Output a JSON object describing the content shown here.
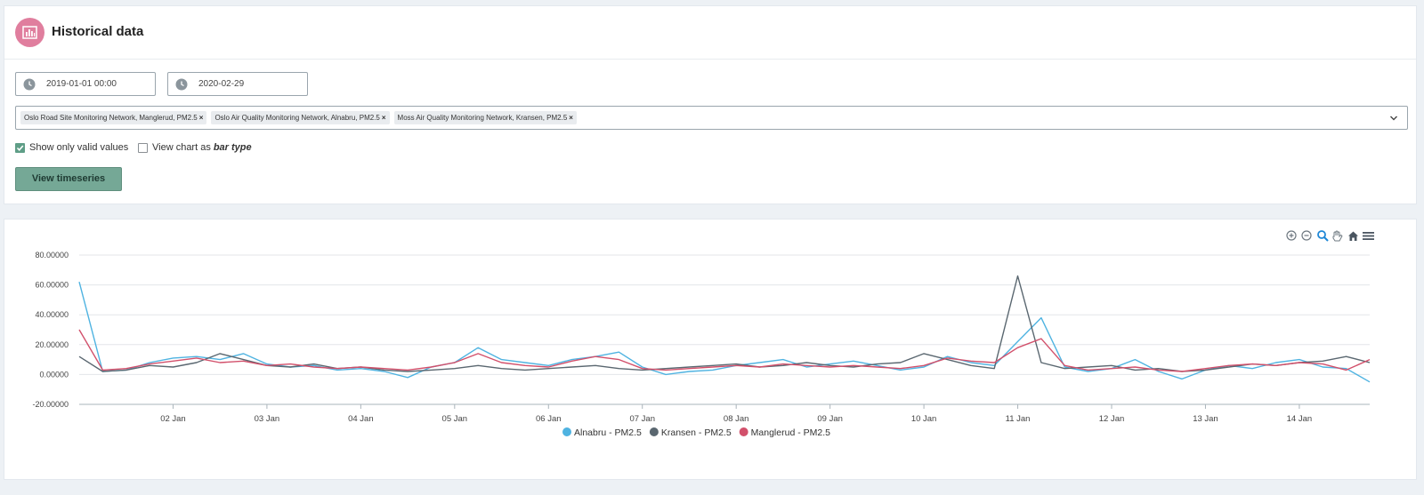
{
  "header": {
    "title": "Historical data"
  },
  "filters": {
    "start_date": "2019-01-01 00:00",
    "end_date": "2020-02-29",
    "stations": [
      "Oslo Road Site Monitoring Network, Manglerud, PM2.5",
      "Oslo Air Quality Monitoring Network, Alnabru, PM2.5",
      "Moss Air Quality Monitoring Network, Kransen, PM2.5"
    ],
    "remove_symbol": "×",
    "show_only_valid_label": "Show only valid values",
    "show_only_valid_checked": true,
    "view_chart_as_label": "View chart as",
    "bar_type_label": "bar type",
    "bar_type_checked": false,
    "view_button": "View timeseries"
  },
  "toolbar": {
    "icons": [
      "zoom-in-icon",
      "zoom-out-icon",
      "zoom-select-icon",
      "pan-icon",
      "home-icon",
      "menu-icon"
    ]
  },
  "colors": {
    "alnabru": "#4fb3e1",
    "kransen": "#5a6770",
    "manglerud": "#d2506b",
    "accent": "#75a896",
    "header_icon": "#e07e9e"
  },
  "chart_data": {
    "type": "line",
    "x_tick_labels": [
      "02 Jan",
      "03 Jan",
      "04 Jan",
      "05 Jan",
      "06 Jan",
      "07 Jan",
      "08 Jan",
      "09 Jan",
      "10 Jan",
      "11 Jan",
      "12 Jan",
      "13 Jan",
      "14 Jan"
    ],
    "x_range": [
      "2019-01-01 00:00",
      "2019-01-14 18:00"
    ],
    "y_tick_labels": [
      "80.00000",
      "60.00000",
      "40.00000",
      "20.00000",
      "0.00000",
      "-20.00000"
    ],
    "ylim": [
      -20,
      80
    ],
    "grid": true,
    "legend": "bottom-center",
    "series": [
      {
        "name": "Alnabru - PM2.5",
        "x": [
          "2019-01-01 00:00",
          "2019-01-01 06:00",
          "2019-01-01 12:00",
          "2019-01-01 18:00",
          "2019-01-02 00:00",
          "2019-01-02 06:00",
          "2019-01-02 12:00",
          "2019-01-02 18:00",
          "2019-01-03 00:00",
          "2019-01-03 06:00",
          "2019-01-03 12:00",
          "2019-01-03 18:00",
          "2019-01-04 00:00",
          "2019-01-04 06:00",
          "2019-01-04 12:00",
          "2019-01-04 18:00",
          "2019-01-05 00:00",
          "2019-01-05 06:00",
          "2019-01-05 12:00",
          "2019-01-05 18:00",
          "2019-01-06 00:00",
          "2019-01-06 06:00",
          "2019-01-06 12:00",
          "2019-01-06 18:00",
          "2019-01-07 00:00",
          "2019-01-07 06:00",
          "2019-01-07 12:00",
          "2019-01-07 18:00",
          "2019-01-08 00:00",
          "2019-01-08 06:00",
          "2019-01-08 12:00",
          "2019-01-08 18:00",
          "2019-01-09 00:00",
          "2019-01-09 06:00",
          "2019-01-09 12:00",
          "2019-01-09 18:00",
          "2019-01-10 00:00",
          "2019-01-10 06:00",
          "2019-01-10 12:00",
          "2019-01-10 18:00",
          "2019-01-11 00:00",
          "2019-01-11 06:00",
          "2019-01-11 12:00",
          "2019-01-11 18:00",
          "2019-01-12 00:00",
          "2019-01-12 06:00",
          "2019-01-12 12:00",
          "2019-01-12 18:00",
          "2019-01-13 00:00",
          "2019-01-13 06:00",
          "2019-01-13 12:00",
          "2019-01-13 18:00",
          "2019-01-14 00:00",
          "2019-01-14 06:00",
          "2019-01-14 12:00",
          "2019-01-14 18:00"
        ],
        "values": [
          62,
          2,
          3,
          8,
          11,
          12,
          10,
          14,
          7,
          5,
          6,
          3,
          4,
          2,
          -2,
          5,
          8,
          18,
          10,
          8,
          6,
          10,
          12,
          15,
          5,
          0,
          2,
          3,
          6,
          8,
          10,
          5,
          7,
          9,
          6,
          3,
          5,
          12,
          8,
          6,
          22,
          38,
          5,
          2,
          4,
          10,
          2,
          -3,
          3,
          6,
          4,
          8,
          10,
          5,
          4,
          -5
        ]
      },
      {
        "name": "Kransen - PM2.5",
        "x": [
          "2019-01-01 00:00",
          "2019-01-01 06:00",
          "2019-01-01 12:00",
          "2019-01-01 18:00",
          "2019-01-02 00:00",
          "2019-01-02 06:00",
          "2019-01-02 12:00",
          "2019-01-02 18:00",
          "2019-01-03 00:00",
          "2019-01-03 06:00",
          "2019-01-03 12:00",
          "2019-01-03 18:00",
          "2019-01-04 00:00",
          "2019-01-04 06:00",
          "2019-01-04 12:00",
          "2019-01-04 18:00",
          "2019-01-05 00:00",
          "2019-01-05 06:00",
          "2019-01-05 12:00",
          "2019-01-05 18:00",
          "2019-01-06 00:00",
          "2019-01-06 06:00",
          "2019-01-06 12:00",
          "2019-01-06 18:00",
          "2019-01-07 00:00",
          "2019-01-07 06:00",
          "2019-01-07 12:00",
          "2019-01-07 18:00",
          "2019-01-08 00:00",
          "2019-01-08 06:00",
          "2019-01-08 12:00",
          "2019-01-08 18:00",
          "2019-01-09 00:00",
          "2019-01-09 06:00",
          "2019-01-09 12:00",
          "2019-01-09 18:00",
          "2019-01-10 00:00",
          "2019-01-10 06:00",
          "2019-01-10 12:00",
          "2019-01-10 18:00",
          "2019-01-11 00:00",
          "2019-01-11 06:00",
          "2019-01-11 12:00",
          "2019-01-11 18:00",
          "2019-01-12 00:00",
          "2019-01-12 06:00",
          "2019-01-12 12:00",
          "2019-01-12 18:00",
          "2019-01-13 00:00",
          "2019-01-13 06:00",
          "2019-01-13 12:00",
          "2019-01-13 18:00",
          "2019-01-14 00:00",
          "2019-01-14 06:00",
          "2019-01-14 12:00",
          "2019-01-14 18:00"
        ],
        "values": [
          12,
          2,
          3,
          6,
          5,
          8,
          14,
          10,
          6,
          5,
          7,
          4,
          5,
          3,
          2,
          3,
          4,
          6,
          4,
          3,
          4,
          5,
          6,
          4,
          3,
          4,
          5,
          6,
          7,
          5,
          6,
          8,
          6,
          5,
          7,
          8,
          14,
          10,
          6,
          4,
          66,
          8,
          4,
          5,
          6,
          3,
          4,
          2,
          3,
          5,
          7,
          6,
          8,
          9,
          12,
          8
        ]
      },
      {
        "name": "Manglerud - PM2.5",
        "x": [
          "2019-01-01 00:00",
          "2019-01-01 06:00",
          "2019-01-01 12:00",
          "2019-01-01 18:00",
          "2019-01-02 00:00",
          "2019-01-02 06:00",
          "2019-01-02 12:00",
          "2019-01-02 18:00",
          "2019-01-03 00:00",
          "2019-01-03 06:00",
          "2019-01-03 12:00",
          "2019-01-03 18:00",
          "2019-01-04 00:00",
          "2019-01-04 06:00",
          "2019-01-04 12:00",
          "2019-01-04 18:00",
          "2019-01-05 00:00",
          "2019-01-05 06:00",
          "2019-01-05 12:00",
          "2019-01-05 18:00",
          "2019-01-06 00:00",
          "2019-01-06 06:00",
          "2019-01-06 12:00",
          "2019-01-06 18:00",
          "2019-01-07 00:00",
          "2019-01-07 06:00",
          "2019-01-07 12:00",
          "2019-01-07 18:00",
          "2019-01-08 00:00",
          "2019-01-08 06:00",
          "2019-01-08 12:00",
          "2019-01-08 18:00",
          "2019-01-09 00:00",
          "2019-01-09 06:00",
          "2019-01-09 12:00",
          "2019-01-09 18:00",
          "2019-01-10 00:00",
          "2019-01-10 06:00",
          "2019-01-10 12:00",
          "2019-01-10 18:00",
          "2019-01-11 00:00",
          "2019-01-11 06:00",
          "2019-01-11 12:00",
          "2019-01-11 18:00",
          "2019-01-12 00:00",
          "2019-01-12 06:00",
          "2019-01-12 12:00",
          "2019-01-12 18:00",
          "2019-01-13 00:00",
          "2019-01-13 06:00",
          "2019-01-13 12:00",
          "2019-01-13 18:00",
          "2019-01-14 00:00",
          "2019-01-14 06:00",
          "2019-01-14 12:00",
          "2019-01-14 18:00"
        ],
        "values": [
          30,
          3,
          4,
          7,
          9,
          11,
          8,
          9,
          6,
          7,
          5,
          4,
          5,
          4,
          3,
          5,
          8,
          14,
          8,
          6,
          5,
          9,
          12,
          10,
          4,
          3,
          4,
          5,
          6,
          5,
          7,
          6,
          5,
          6,
          5,
          4,
          6,
          11,
          9,
          8,
          18,
          24,
          6,
          3,
          4,
          5,
          3,
          2,
          4,
          6,
          7,
          6,
          8,
          7,
          3,
          10
        ]
      }
    ]
  }
}
